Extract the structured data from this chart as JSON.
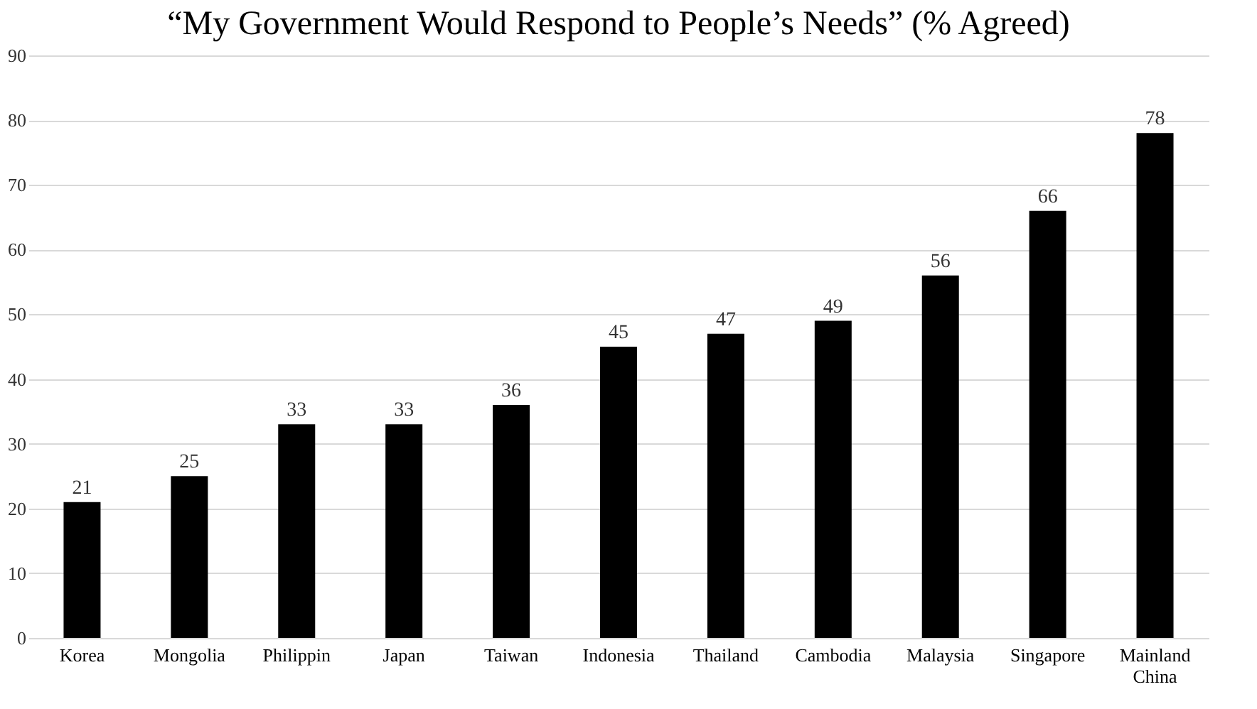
{
  "chart_data": {
    "type": "bar",
    "title": "“My Government Would Respond to People’s Needs” (% Agreed)",
    "categories": [
      "Korea",
      "Mongolia",
      "Philippin",
      "Japan",
      "Taiwan",
      "Indonesia",
      "Thailand",
      "Cambodia",
      "Malaysia",
      "Singapore",
      "Mainland China"
    ],
    "values": [
      21,
      25,
      33,
      33,
      36,
      45,
      47,
      49,
      56,
      66,
      78
    ],
    "color": "#000000",
    "ylim": [
      0,
      90
    ],
    "yticks": [
      0,
      10,
      20,
      30,
      40,
      50,
      60,
      70,
      80,
      90
    ],
    "grid": "y",
    "data_labels": true
  }
}
